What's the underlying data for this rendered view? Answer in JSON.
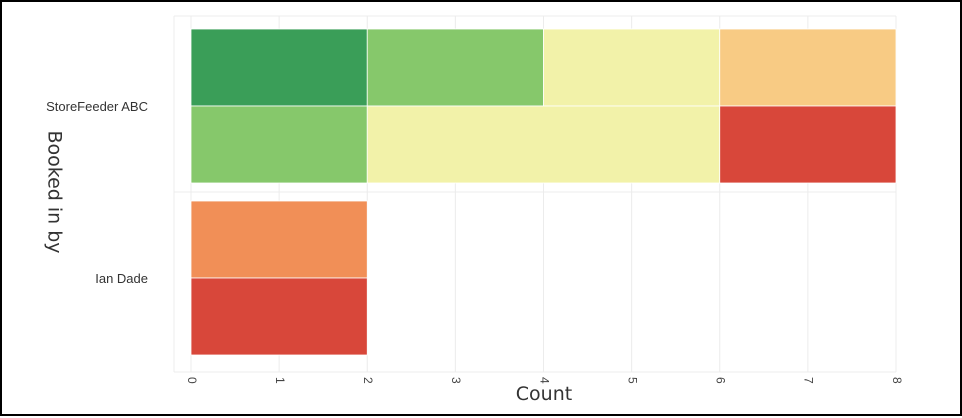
{
  "chart_data": {
    "type": "bar",
    "orientation": "horizontal",
    "stacked": true,
    "xlabel": "Count",
    "ylabel": "Booked in by",
    "xlim": [
      0,
      8
    ],
    "xticks": [
      "0",
      "1",
      "2",
      "3",
      "4",
      "5",
      "6",
      "7",
      "8"
    ],
    "grid": true,
    "groups": [
      {
        "label": "StoreFeeder ABC",
        "rows": [
          {
            "segments": [
              {
                "value": 2,
                "color": "#3a9e58"
              },
              {
                "value": 2,
                "color": "#86c86b"
              },
              {
                "value": 2,
                "color": "#f2f2a9"
              },
              {
                "value": 2,
                "color": "#f8cb84"
              }
            ]
          },
          {
            "segments": [
              {
                "value": 2,
                "color": "#86c86b"
              },
              {
                "value": 4,
                "color": "#f2f2a9"
              },
              {
                "value": 2,
                "color": "#d8473a"
              }
            ]
          }
        ]
      },
      {
        "label": "Ian Dade",
        "rows": [
          {
            "segments": [
              {
                "value": 2,
                "color": "#f18f57"
              }
            ]
          },
          {
            "segments": [
              {
                "value": 2,
                "color": "#d8473a"
              }
            ]
          }
        ]
      }
    ]
  }
}
